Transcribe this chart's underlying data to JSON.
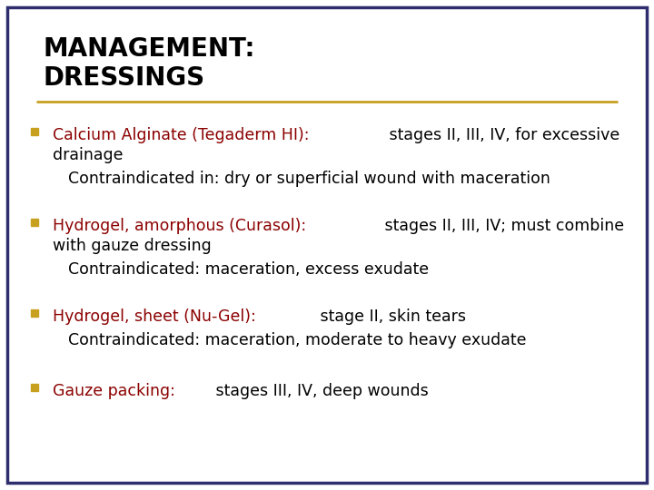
{
  "title_line1": "MANAGEMENT:",
  "title_line2": "DRESSINGS",
  "title_color": "#000000",
  "title_fontsize": 20,
  "background_color": "#ffffff",
  "border_color": "#2e2e6e",
  "divider_color": "#c8a020",
  "bullet_color": "#c8a020",
  "items": [
    {
      "colored_text": "Calcium Alginate (Tegaderm HI):",
      "colored_color": "#8b0000",
      "line1_rest": " stages II, III, IV, for excessive",
      "line2": "drainage",
      "sub_text": "Contraindicated in: dry or superficial wound with maceration"
    },
    {
      "colored_text": "Hydrogel, amorphous (Curasol):",
      "colored_color": "#8b0000",
      "line1_rest": " stages II, III, IV; must combine",
      "line2": "with gauze dressing",
      "sub_text": "Contraindicated: maceration, excess exudate"
    },
    {
      "colored_text": "Hydrogel, sheet (Nu-Gel):",
      "colored_color": "#8b0000",
      "line1_rest": " stage II, skin tears",
      "line2": null,
      "sub_text": "Contraindicated: maceration, moderate to heavy exudate"
    },
    {
      "colored_text": "Gauze packing:",
      "colored_color": "#8b0000",
      "line1_rest": " stages III, IV, deep wounds",
      "line2": null,
      "sub_text": null
    }
  ],
  "body_fontsize": 12.5,
  "sub_fontsize": 12.5
}
